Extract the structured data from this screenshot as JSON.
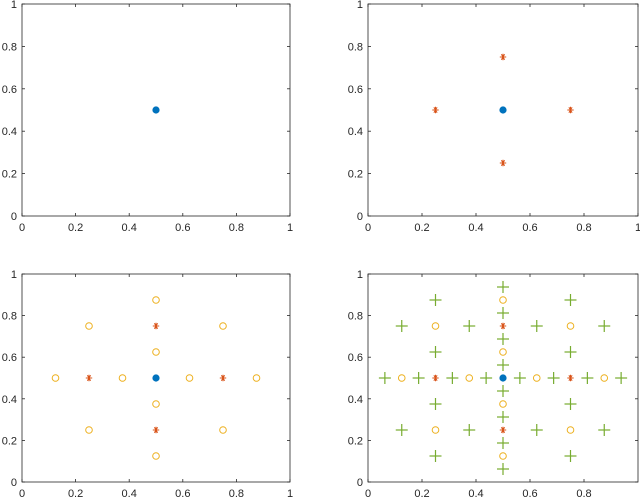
{
  "colors": {
    "blue": "#0072BD",
    "red": "#D95319",
    "yellow": "#EDB120",
    "green": "#77AC30",
    "axis": "#262626"
  },
  "chart_data": [
    {
      "type": "scatter",
      "xlim": [
        0,
        1
      ],
      "ylim": [
        0,
        1
      ],
      "xticks": [
        "0",
        "0.2",
        "0.4",
        "0.6",
        "0.8",
        "1"
      ],
      "yticks": [
        "0",
        "0.2",
        "0.4",
        "0.6",
        "0.8",
        "1"
      ],
      "grid": false,
      "series": [
        {
          "marker": "dot",
          "color": "blue",
          "points": [
            [
              0.5,
              0.5
            ]
          ]
        }
      ]
    },
    {
      "type": "scatter",
      "xlim": [
        0,
        1
      ],
      "ylim": [
        0,
        1
      ],
      "xticks": [
        "0",
        "0.2",
        "0.4",
        "0.6",
        "0.8",
        "1"
      ],
      "yticks": [
        "0",
        "0.2",
        "0.4",
        "0.6",
        "0.8",
        "1"
      ],
      "grid": false,
      "series": [
        {
          "marker": "dot",
          "color": "blue",
          "points": [
            [
              0.5,
              0.5
            ]
          ]
        },
        {
          "marker": "asterisk",
          "color": "red",
          "points": [
            [
              0.25,
              0.5
            ],
            [
              0.75,
              0.5
            ],
            [
              0.5,
              0.25
            ],
            [
              0.5,
              0.75
            ]
          ]
        }
      ]
    },
    {
      "type": "scatter",
      "xlim": [
        0,
        1
      ],
      "ylim": [
        0,
        1
      ],
      "xticks": [
        "0",
        "0.2",
        "0.4",
        "0.6",
        "0.8",
        "1"
      ],
      "yticks": [
        "0",
        "0.2",
        "0.4",
        "0.6",
        "0.8",
        "1"
      ],
      "grid": false,
      "series": [
        {
          "marker": "dot",
          "color": "blue",
          "points": [
            [
              0.5,
              0.5
            ]
          ]
        },
        {
          "marker": "asterisk",
          "color": "red",
          "points": [
            [
              0.25,
              0.5
            ],
            [
              0.75,
              0.5
            ],
            [
              0.5,
              0.25
            ],
            [
              0.5,
              0.75
            ]
          ]
        },
        {
          "marker": "circle",
          "color": "yellow",
          "points": [
            [
              0.125,
              0.5
            ],
            [
              0.375,
              0.5
            ],
            [
              0.625,
              0.5
            ],
            [
              0.875,
              0.5
            ],
            [
              0.5,
              0.125
            ],
            [
              0.5,
              0.375
            ],
            [
              0.5,
              0.625
            ],
            [
              0.5,
              0.875
            ],
            [
              0.25,
              0.25
            ],
            [
              0.25,
              0.75
            ],
            [
              0.75,
              0.25
            ],
            [
              0.75,
              0.75
            ]
          ]
        }
      ]
    },
    {
      "type": "scatter",
      "xlim": [
        0,
        1
      ],
      "ylim": [
        0,
        1
      ],
      "xticks": [
        "0",
        "0.2",
        "0.4",
        "0.6",
        "0.8"
      ],
      "yticks": [
        "0",
        "0.2",
        "0.4",
        "0.6",
        "0.8",
        "1"
      ],
      "grid": false,
      "series": [
        {
          "marker": "dot",
          "color": "blue",
          "points": [
            [
              0.5,
              0.5
            ]
          ]
        },
        {
          "marker": "asterisk",
          "color": "red",
          "points": [
            [
              0.25,
              0.5
            ],
            [
              0.75,
              0.5
            ],
            [
              0.5,
              0.25
            ],
            [
              0.5,
              0.75
            ]
          ]
        },
        {
          "marker": "circle",
          "color": "yellow",
          "points": [
            [
              0.125,
              0.5
            ],
            [
              0.375,
              0.5
            ],
            [
              0.625,
              0.5
            ],
            [
              0.875,
              0.5
            ],
            [
              0.5,
              0.125
            ],
            [
              0.5,
              0.375
            ],
            [
              0.5,
              0.625
            ],
            [
              0.5,
              0.875
            ],
            [
              0.25,
              0.25
            ],
            [
              0.25,
              0.75
            ],
            [
              0.75,
              0.25
            ],
            [
              0.75,
              0.75
            ]
          ]
        },
        {
          "marker": "plus",
          "color": "green",
          "points": [
            [
              0.0625,
              0.5
            ],
            [
              0.1875,
              0.5
            ],
            [
              0.3125,
              0.5
            ],
            [
              0.4375,
              0.5
            ],
            [
              0.5625,
              0.5
            ],
            [
              0.6875,
              0.5
            ],
            [
              0.8125,
              0.5
            ],
            [
              0.9375,
              0.5
            ],
            [
              0.5,
              0.0625
            ],
            [
              0.5,
              0.1875
            ],
            [
              0.5,
              0.3125
            ],
            [
              0.5,
              0.4375
            ],
            [
              0.5,
              0.5625
            ],
            [
              0.5,
              0.6875
            ],
            [
              0.5,
              0.8125
            ],
            [
              0.5,
              0.9375
            ],
            [
              0.25,
              0.125
            ],
            [
              0.25,
              0.375
            ],
            [
              0.25,
              0.625
            ],
            [
              0.25,
              0.875
            ],
            [
              0.75,
              0.125
            ],
            [
              0.75,
              0.375
            ],
            [
              0.75,
              0.625
            ],
            [
              0.75,
              0.875
            ],
            [
              0.125,
              0.25
            ],
            [
              0.375,
              0.25
            ],
            [
              0.625,
              0.25
            ],
            [
              0.875,
              0.25
            ],
            [
              0.125,
              0.75
            ],
            [
              0.375,
              0.75
            ],
            [
              0.625,
              0.75
            ],
            [
              0.875,
              0.75
            ]
          ]
        }
      ]
    }
  ]
}
